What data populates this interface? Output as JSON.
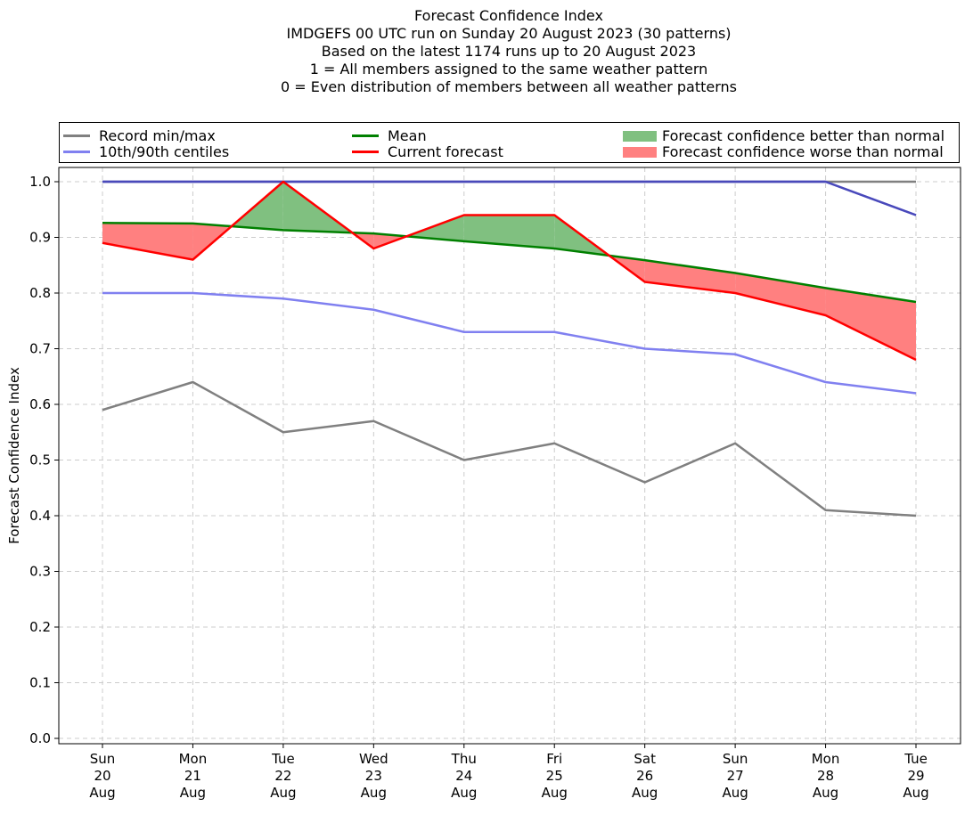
{
  "chart_data": {
    "type": "line",
    "title_lines": [
      "Forecast Confidence Index",
      "IMDGEFS 00 UTC run on Sunday 20 August 2023 (30 patterns)",
      "Based on the latest 1174 runs up to 20 August 2023",
      "1 = All members assigned to the same weather pattern",
      "0 = Even distribution of members between all weather patterns"
    ],
    "ylabel": "Forecast Confidence Index",
    "ylim": [
      0.0,
      1.0
    ],
    "yticks": [
      "0.0",
      "0.1",
      "0.2",
      "0.3",
      "0.4",
      "0.5",
      "0.6",
      "0.7",
      "0.8",
      "0.9",
      "1.0"
    ],
    "grid": true,
    "legend_position": "top",
    "categories": [
      [
        "Sun",
        "20",
        "Aug"
      ],
      [
        "Mon",
        "21",
        "Aug"
      ],
      [
        "Tue",
        "22",
        "Aug"
      ],
      [
        "Wed",
        "23",
        "Aug"
      ],
      [
        "Thu",
        "24",
        "Aug"
      ],
      [
        "Fri",
        "25",
        "Aug"
      ],
      [
        "Sat",
        "26",
        "Aug"
      ],
      [
        "Sun",
        "27",
        "Aug"
      ],
      [
        "Mon",
        "28",
        "Aug"
      ],
      [
        "Tue",
        "29",
        "Aug"
      ]
    ],
    "series": {
      "record_min": [
        0.59,
        0.64,
        0.55,
        0.57,
        0.5,
        0.53,
        0.46,
        0.53,
        0.41,
        0.4
      ],
      "record_max": [
        1.0,
        1.0,
        1.0,
        1.0,
        1.0,
        1.0,
        1.0,
        1.0,
        1.0,
        1.0
      ],
      "p10": [
        0.8,
        0.8,
        0.79,
        0.77,
        0.73,
        0.73,
        0.7,
        0.69,
        0.64,
        0.62
      ],
      "p90": [
        1.0,
        1.0,
        1.0,
        1.0,
        1.0,
        1.0,
        1.0,
        1.0,
        1.0,
        0.94
      ],
      "mean": [
        0.926,
        0.925,
        0.913,
        0.907,
        0.893,
        0.88,
        0.859,
        0.836,
        0.809,
        0.784
      ],
      "current": [
        0.89,
        0.86,
        1.0,
        0.88,
        0.94,
        0.94,
        0.82,
        0.8,
        0.76,
        0.68
      ]
    },
    "legend": {
      "record": "Record min/max",
      "centiles": "10th/90th centiles",
      "mean": "Mean",
      "current": "Current forecast",
      "better": "Forecast confidence better than normal",
      "worse": "Forecast confidence worse than normal"
    },
    "colors": {
      "record": "#808080",
      "centiles": "#8080f0",
      "mean": "#008000",
      "current": "#ff0000",
      "better": "#80c080",
      "worse": "#ff8080",
      "grid": "#cccccc",
      "overlap": "#4040b0"
    }
  }
}
